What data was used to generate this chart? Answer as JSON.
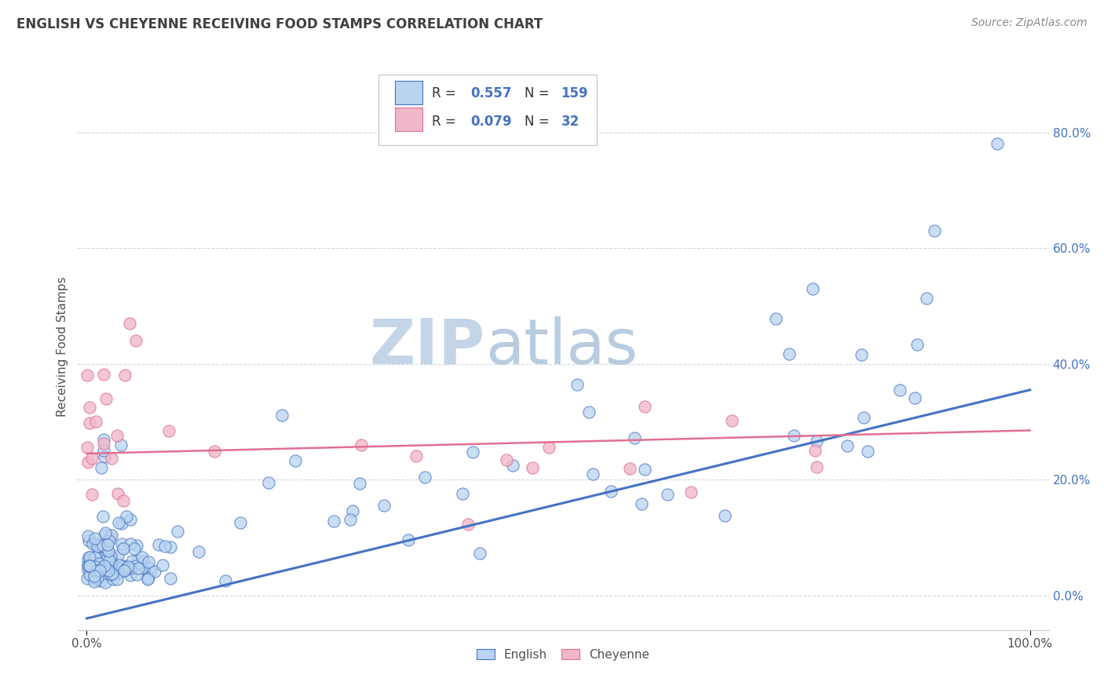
{
  "title": "ENGLISH VS CHEYENNE RECEIVING FOOD STAMPS CORRELATION CHART",
  "source_text": "Source: ZipAtlas.com",
  "ylabel": "Receiving Food Stamps",
  "english_R": 0.557,
  "english_N": 159,
  "cheyenne_R": 0.079,
  "cheyenne_N": 32,
  "english_color": "#b8d4f0",
  "cheyenne_color": "#f0b8c8",
  "english_line_color": "#4472c4",
  "cheyenne_line_color": "#e07090",
  "title_color": "#404040",
  "legend_R_N_color": "#4472c4",
  "watermark_color": "#d0dff0",
  "background_color": "#ffffff",
  "grid_color": "#d0d8e0",
  "ytick_labels": [
    "0.0%",
    "20.0%",
    "40.0%",
    "60.0%",
    "80.0%"
  ],
  "ytick_values": [
    0.0,
    0.2,
    0.4,
    0.6,
    0.8
  ],
  "xlim": [
    -0.01,
    1.02
  ],
  "ylim": [
    -0.06,
    0.92
  ],
  "eng_line_x": [
    0.0,
    1.0
  ],
  "eng_line_y": [
    -0.04,
    0.355
  ],
  "chey_line_x": [
    0.0,
    1.0
  ],
  "chey_line_y": [
    0.245,
    0.285
  ]
}
